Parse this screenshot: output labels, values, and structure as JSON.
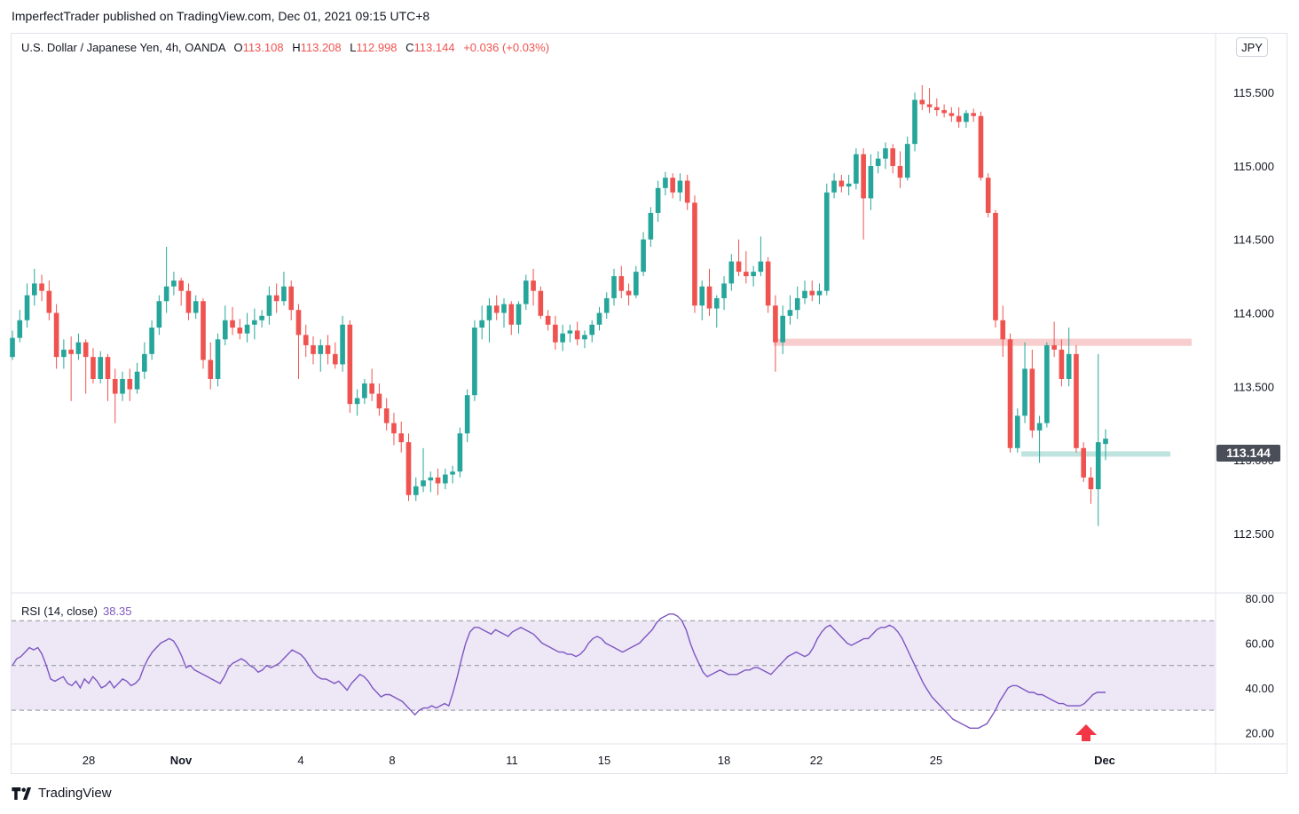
{
  "publisher_line": "ImperfectTrader published on TradingView.com, Dec 01, 2021 09:15 UTC+8",
  "legend": {
    "symbol": "U.S. Dollar / Japanese Yen, 4h, OANDA",
    "o_label": "O",
    "o_value": "113.108",
    "h_label": "H",
    "h_value": "113.208",
    "l_label": "L",
    "l_value": "112.998",
    "c_label": "C",
    "c_value": "113.144",
    "change": "+0.036 (+0.03%)"
  },
  "currency_button": "JPY",
  "last_price_tag": "113.144",
  "rsi_legend": {
    "label": "RSI (14, close)",
    "value": "38.35"
  },
  "footer_brand": "TradingView",
  "colors": {
    "up": "#26a69a",
    "down": "#ef5350",
    "rsi": "#7e57c2",
    "rsi_band": "#ede7f6",
    "resistance": "#f8cdcd",
    "support": "#bfe4e0",
    "arrow": "#f23645"
  },
  "chart_data": [
    {
      "type": "candlestick",
      "title": "U.S. Dollar / Japanese Yen, 4h, OANDA",
      "ylim": [
        112.1,
        115.9
      ],
      "y_ticks": [
        "115.500",
        "115.000",
        "114.500",
        "114.000",
        "113.500",
        "113.000",
        "112.500"
      ],
      "x_ticks": [
        {
          "label": "28",
          "bold": false
        },
        {
          "label": "Nov",
          "bold": true
        },
        {
          "label": "4",
          "bold": false
        },
        {
          "label": "8",
          "bold": false
        },
        {
          "label": "11",
          "bold": false
        },
        {
          "label": "15",
          "bold": false
        },
        {
          "label": "18",
          "bold": false
        },
        {
          "label": "22",
          "bold": false
        },
        {
          "label": "25",
          "bold": false
        },
        {
          "label": "Dec",
          "bold": true
        }
      ],
      "ohlc": [
        [
          113.7,
          113.88,
          113.68,
          113.83
        ],
        [
          113.83,
          114.02,
          113.8,
          113.95
        ],
        [
          113.95,
          114.2,
          113.9,
          114.12
        ],
        [
          114.12,
          114.3,
          114.05,
          114.2
        ],
        [
          114.2,
          114.26,
          114.08,
          114.15
        ],
        [
          114.15,
          114.22,
          113.95,
          114.0
        ],
        [
          114.0,
          114.06,
          113.62,
          113.7
        ],
        [
          113.7,
          113.82,
          113.62,
          113.75
        ],
        [
          113.75,
          113.84,
          113.4,
          113.72
        ],
        [
          113.72,
          113.86,
          113.68,
          113.8
        ],
        [
          113.8,
          113.82,
          113.45,
          113.7
        ],
        [
          113.7,
          113.76,
          113.52,
          113.55
        ],
        [
          113.55,
          113.74,
          113.52,
          113.7
        ],
        [
          113.7,
          113.72,
          113.4,
          113.55
        ],
        [
          113.55,
          113.62,
          113.25,
          113.45
        ],
        [
          113.45,
          113.6,
          113.4,
          113.55
        ],
        [
          113.55,
          113.62,
          113.4,
          113.48
        ],
        [
          113.48,
          113.66,
          113.45,
          113.6
        ],
        [
          113.6,
          113.8,
          113.55,
          113.72
        ],
        [
          113.72,
          113.95,
          113.68,
          113.9
        ],
        [
          113.9,
          114.12,
          113.85,
          114.08
        ],
        [
          114.08,
          114.45,
          114.0,
          114.18
        ],
        [
          114.18,
          114.28,
          114.12,
          114.22
        ],
        [
          114.22,
          114.24,
          114.05,
          114.15
        ],
        [
          114.15,
          114.2,
          113.95,
          114.0
        ],
        [
          114.0,
          114.12,
          113.96,
          114.08
        ],
        [
          114.08,
          114.1,
          113.62,
          113.68
        ],
        [
          113.68,
          113.8,
          113.48,
          113.55
        ],
        [
          113.55,
          113.86,
          113.5,
          113.82
        ],
        [
          113.82,
          114.05,
          113.78,
          113.95
        ],
        [
          113.95,
          114.04,
          113.85,
          113.9
        ],
        [
          113.9,
          113.96,
          113.82,
          113.86
        ],
        [
          113.86,
          114.0,
          113.8,
          113.92
        ],
        [
          113.92,
          114.03,
          113.82,
          113.95
        ],
        [
          113.95,
          114.02,
          113.9,
          113.98
        ],
        [
          113.98,
          114.18,
          113.92,
          114.12
        ],
        [
          114.12,
          114.2,
          114.0,
          114.08
        ],
        [
          114.08,
          114.28,
          114.05,
          114.18
        ],
        [
          114.18,
          114.22,
          113.95,
          114.02
        ],
        [
          114.02,
          114.06,
          113.55,
          113.85
        ],
        [
          113.85,
          113.92,
          113.7,
          113.78
        ],
        [
          113.78,
          113.84,
          113.65,
          113.72
        ],
        [
          113.72,
          113.82,
          113.6,
          113.78
        ],
        [
          113.78,
          113.85,
          113.65,
          113.72
        ],
        [
          113.72,
          113.8,
          113.62,
          113.65
        ],
        [
          113.65,
          113.98,
          113.6,
          113.92
        ],
        [
          113.92,
          113.95,
          113.32,
          113.38
        ],
        [
          113.38,
          113.48,
          113.3,
          113.42
        ],
        [
          113.42,
          113.55,
          113.38,
          113.52
        ],
        [
          113.52,
          113.62,
          113.4,
          113.45
        ],
        [
          113.45,
          113.52,
          113.3,
          113.35
        ],
        [
          113.35,
          113.42,
          113.2,
          113.25
        ],
        [
          113.25,
          113.32,
          113.1,
          113.18
        ],
        [
          113.18,
          113.26,
          113.05,
          113.12
        ],
        [
          113.12,
          113.18,
          112.72,
          112.76
        ],
        [
          112.76,
          112.88,
          112.72,
          112.82
        ],
        [
          112.82,
          113.08,
          112.78,
          112.86
        ],
        [
          112.86,
          112.92,
          112.78,
          112.88
        ],
        [
          112.88,
          112.94,
          112.76,
          112.84
        ],
        [
          112.84,
          112.94,
          112.8,
          112.9
        ],
        [
          112.9,
          112.96,
          112.84,
          112.92
        ],
        [
          112.92,
          113.22,
          112.88,
          113.18
        ],
        [
          113.18,
          113.48,
          113.12,
          113.44
        ],
        [
          113.44,
          113.95,
          113.4,
          113.9
        ],
        [
          113.9,
          114.05,
          113.82,
          113.95
        ],
        [
          113.95,
          114.1,
          113.8,
          114.05
        ],
        [
          114.05,
          114.12,
          113.95,
          114.0
        ],
        [
          114.0,
          114.1,
          113.9,
          114.06
        ],
        [
          114.06,
          114.08,
          113.85,
          113.92
        ],
        [
          113.92,
          114.08,
          113.86,
          114.06
        ],
        [
          114.06,
          114.26,
          114.02,
          114.22
        ],
        [
          114.22,
          114.3,
          114.05,
          114.15
        ],
        [
          114.15,
          114.18,
          113.96,
          113.98
        ],
        [
          113.98,
          114.02,
          113.88,
          113.92
        ],
        [
          113.92,
          113.98,
          113.75,
          113.8
        ],
        [
          113.8,
          113.92,
          113.74,
          113.86
        ],
        [
          113.86,
          113.92,
          113.8,
          113.88
        ],
        [
          113.88,
          113.94,
          113.78,
          113.82
        ],
        [
          113.82,
          113.88,
          113.76,
          113.85
        ],
        [
          113.85,
          113.95,
          113.8,
          113.92
        ],
        [
          113.92,
          114.04,
          113.88,
          114.0
        ],
        [
          114.0,
          114.14,
          113.96,
          114.1
        ],
        [
          114.1,
          114.3,
          114.05,
          114.25
        ],
        [
          114.25,
          114.32,
          114.1,
          114.15
        ],
        [
          114.15,
          114.2,
          114.05,
          114.12
        ],
        [
          114.12,
          114.32,
          114.1,
          114.28
        ],
        [
          114.28,
          114.55,
          114.25,
          114.5
        ],
        [
          114.5,
          114.72,
          114.45,
          114.68
        ],
        [
          114.68,
          114.9,
          114.62,
          114.85
        ],
        [
          114.85,
          114.96,
          114.8,
          114.92
        ],
        [
          114.92,
          114.95,
          114.78,
          114.82
        ],
        [
          114.82,
          114.95,
          114.76,
          114.9
        ],
        [
          114.9,
          114.94,
          114.7,
          114.75
        ],
        [
          114.75,
          114.8,
          114.0,
          114.05
        ],
        [
          114.05,
          114.22,
          113.95,
          114.18
        ],
        [
          114.18,
          114.3,
          113.98,
          114.03
        ],
        [
          114.03,
          114.12,
          113.9,
          114.1
        ],
        [
          114.1,
          114.25,
          114.02,
          114.2
        ],
        [
          114.2,
          114.4,
          114.15,
          114.35
        ],
        [
          114.35,
          114.5,
          114.25,
          114.28
        ],
        [
          114.28,
          114.42,
          114.2,
          114.25
        ],
        [
          114.25,
          114.32,
          114.18,
          114.28
        ],
        [
          114.28,
          114.52,
          114.25,
          114.35
        ],
        [
          114.35,
          114.38,
          114.0,
          114.05
        ],
        [
          114.05,
          114.12,
          113.6,
          113.8
        ],
        [
          113.8,
          114.05,
          113.72,
          113.98
        ],
        [
          113.98,
          114.12,
          113.92,
          114.02
        ],
        [
          114.02,
          114.18,
          113.96,
          114.1
        ],
        [
          114.1,
          114.22,
          114.06,
          114.15
        ],
        [
          114.15,
          114.22,
          114.08,
          114.12
        ],
        [
          114.12,
          114.2,
          114.06,
          114.15
        ],
        [
          114.15,
          114.88,
          114.12,
          114.82
        ],
        [
          114.82,
          114.95,
          114.78,
          114.9
        ],
        [
          114.9,
          114.94,
          114.82,
          114.86
        ],
        [
          114.86,
          114.94,
          114.8,
          114.88
        ],
        [
          114.88,
          115.12,
          114.84,
          115.08
        ],
        [
          115.08,
          115.12,
          114.5,
          114.78
        ],
        [
          114.78,
          115.08,
          114.7,
          115.0
        ],
        [
          115.0,
          115.1,
          114.95,
          115.05
        ],
        [
          115.05,
          115.16,
          114.98,
          115.12
        ],
        [
          115.12,
          115.15,
          114.95,
          115.0
        ],
        [
          115.0,
          115.1,
          114.85,
          114.92
        ],
        [
          114.92,
          115.2,
          114.9,
          115.15
        ],
        [
          115.15,
          115.5,
          115.1,
          115.45
        ],
        [
          115.45,
          115.55,
          115.38,
          115.42
        ],
        [
          115.42,
          115.53,
          115.36,
          115.4
        ],
        [
          115.4,
          115.46,
          115.34,
          115.38
        ],
        [
          115.38,
          115.42,
          115.33,
          115.36
        ],
        [
          115.36,
          115.4,
          115.3,
          115.34
        ],
        [
          115.34,
          115.4,
          115.26,
          115.3
        ],
        [
          115.3,
          115.38,
          115.26,
          115.36
        ],
        [
          115.36,
          115.39,
          115.3,
          115.34
        ],
        [
          115.34,
          115.37,
          114.9,
          114.92
        ],
        [
          114.92,
          114.95,
          114.65,
          114.68
        ],
        [
          114.68,
          114.7,
          113.9,
          113.95
        ],
        [
          113.95,
          114.05,
          113.7,
          113.82
        ],
        [
          113.82,
          113.86,
          113.05,
          113.08
        ],
        [
          113.08,
          113.35,
          113.05,
          113.3
        ],
        [
          113.3,
          113.8,
          113.25,
          113.62
        ],
        [
          113.62,
          113.75,
          113.15,
          113.2
        ],
        [
          113.2,
          113.3,
          112.98,
          113.25
        ],
        [
          113.25,
          113.8,
          113.22,
          113.78
        ],
        [
          113.78,
          113.94,
          113.7,
          113.75
        ],
        [
          113.75,
          113.82,
          113.5,
          113.55
        ],
        [
          113.55,
          113.9,
          113.5,
          113.72
        ],
        [
          113.72,
          113.78,
          113.05,
          113.08
        ],
        [
          113.08,
          113.12,
          112.85,
          112.88
        ],
        [
          112.88,
          112.95,
          112.7,
          112.8
        ],
        [
          112.8,
          113.72,
          112.55,
          113.12
        ],
        [
          113.108,
          113.208,
          112.998,
          113.144
        ]
      ],
      "resistance_level": 113.8,
      "support_level": 113.04
    },
    {
      "type": "line",
      "title": "RSI (14, close)",
      "ylim": [
        15,
        82
      ],
      "y_ticks": [
        "80.00",
        "60.00",
        "40.00",
        "20.00"
      ],
      "band": [
        30,
        70
      ],
      "midline": 50,
      "values": [
        50,
        53,
        54,
        56,
        58,
        57,
        58,
        55,
        50,
        44,
        43,
        44,
        45,
        42,
        41,
        43,
        40,
        44,
        42,
        45,
        43,
        40,
        41,
        43,
        40,
        42,
        44,
        43,
        41,
        42,
        44,
        49,
        53,
        56,
        58,
        60,
        61,
        62,
        61,
        58,
        54,
        49,
        50,
        48,
        47,
        46,
        45,
        44,
        43,
        42,
        45,
        49,
        51,
        52,
        53,
        52,
        50,
        49,
        47,
        48,
        50,
        49,
        50,
        51,
        53,
        55,
        57,
        56,
        55,
        53,
        50,
        47,
        45,
        44,
        44,
        43,
        42,
        43,
        41,
        39,
        42,
        44,
        46,
        45,
        43,
        40,
        38,
        36,
        37,
        37,
        36,
        35,
        34,
        32,
        30,
        28,
        30,
        31,
        31,
        32,
        31,
        32,
        33,
        32,
        38,
        45,
        53,
        60,
        65,
        67,
        67,
        66,
        65,
        64,
        66,
        65,
        64,
        63,
        65,
        66,
        67,
        66,
        65,
        64,
        62,
        60,
        59,
        58,
        57,
        56,
        56,
        55,
        55,
        54,
        55,
        57,
        60,
        62,
        63,
        62,
        60,
        59,
        58,
        57,
        56,
        57,
        58,
        59,
        60,
        62,
        64,
        66,
        69,
        71,
        72,
        73,
        73,
        72,
        70,
        66,
        60,
        55,
        51,
        47,
        45,
        46,
        47,
        48,
        47,
        46,
        46,
        46,
        47,
        48,
        48,
        49,
        49,
        48,
        47,
        46,
        48,
        50,
        52,
        54,
        55,
        56,
        55,
        54,
        55,
        58,
        62,
        65,
        67,
        68,
        66,
        64,
        62,
        60,
        59,
        60,
        61,
        62,
        62,
        64,
        66,
        67,
        67,
        68,
        67,
        65,
        62,
        58,
        54,
        50,
        46,
        42,
        39,
        36,
        34,
        32,
        30,
        28,
        26,
        25,
        24,
        23,
        22,
        22,
        22,
        23,
        24,
        27,
        30,
        34,
        37,
        40,
        41,
        41,
        40,
        39,
        38,
        38,
        37,
        37,
        36,
        35,
        34,
        33,
        33,
        32,
        32,
        32,
        32,
        33,
        35,
        37,
        38,
        38,
        38
      ],
      "last_value": 38.35
    }
  ]
}
